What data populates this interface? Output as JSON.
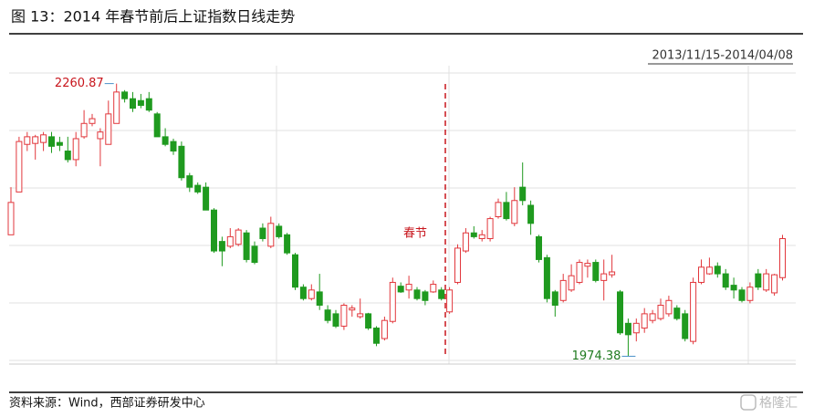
{
  "chart_data": {
    "type": "candlestick",
    "title": "图 13：2014 年春节前后上证指数日线走势",
    "date_range": "2013/11/15-2014/04/08",
    "source": "资料来源：Wind，西部证券研发中心",
    "watermark": "格隆汇",
    "holiday_label": "春节",
    "peak_label": 2260.87,
    "trough_label": 1974.38,
    "up_color": "#e2373c",
    "down_color": "#1f9a1f",
    "ylim": [
      1970,
      2272
    ],
    "open": [
      2102,
      2147,
      2197,
      2198,
      2199,
      2205,
      2199,
      2190,
      2181,
      2205,
      2219,
      2203,
      2197,
      2219,
      2252,
      2245,
      2243,
      2245,
      2229,
      2205,
      2200,
      2195,
      2164,
      2154,
      2152,
      2128,
      2095,
      2090,
      2092,
      2104,
      2090,
      2109,
      2090,
      2111,
      2102,
      2081,
      2047,
      2035,
      2042,
      2023,
      2019,
      2006,
      2023,
      2016,
      2019,
      2004,
      1993,
      2011,
      2048,
      2044,
      2044,
      2042,
      2042,
      2044,
      2021,
      2052,
      2085,
      2104,
      2098,
      2098,
      2121,
      2136,
      2114,
      2152,
      2133,
      2100,
      2078,
      2042,
      2033,
      2044,
      2052,
      2069,
      2073,
      2054,
      2060,
      2042,
      2009,
      1999,
      2004,
      2012,
      2014,
      2019,
      2025,
      2019,
      1990,
      2052,
      2061,
      2069,
      2061,
      2049,
      2044,
      2033,
      2061,
      2044,
      2041,
      2057
    ],
    "high": [
      2152,
      2205,
      2210,
      2207,
      2210,
      2210,
      2205,
      2205,
      2210,
      2233,
      2229,
      2214,
      2243,
      2260.87,
      2254,
      2252,
      2250,
      2252,
      2231,
      2214,
      2203,
      2200,
      2167,
      2157,
      2157,
      2130,
      2100,
      2109,
      2109,
      2107,
      2095,
      2114,
      2121,
      2114,
      2104,
      2083,
      2050,
      2050,
      2061,
      2028,
      2023,
      2030,
      2028,
      2035,
      2020,
      2006,
      2016,
      2057,
      2052,
      2059,
      2047,
      2044,
      2054,
      2047,
      2047,
      2092,
      2109,
      2111,
      2107,
      2121,
      2140,
      2147,
      2152,
      2178,
      2138,
      2102,
      2081,
      2044,
      2061,
      2071,
      2076,
      2076,
      2076,
      2076,
      2081,
      2044,
      2014,
      2014,
      2025,
      2023,
      2035,
      2038,
      2028,
      2023,
      2057,
      2076,
      2078,
      2073,
      2066,
      2057,
      2047,
      2052,
      2066,
      2066,
      2061,
      2102
    ],
    "low": [
      2102,
      2147,
      2190,
      2181,
      2190,
      2188,
      2190,
      2178,
      2174,
      2203,
      2216,
      2174,
      2197,
      2219,
      2241,
      2231,
      2235,
      2231,
      2205,
      2195,
      2186,
      2159,
      2147,
      2145,
      2128,
      2083,
      2069,
      2088,
      2090,
      2073,
      2071,
      2095,
      2088,
      2098,
      2081,
      2044,
      2033,
      2033,
      2023,
      2009,
      2004,
      2002,
      2016,
      2014,
      2002,
      1985,
      1991,
      2009,
      2041,
      2035,
      2033,
      2028,
      2041,
      2033,
      2019,
      2050,
      2083,
      2098,
      2095,
      2095,
      2119,
      2117,
      2111,
      2133,
      2102,
      2073,
      2031,
      2016,
      2031,
      2042,
      2050,
      2057,
      2052,
      2033,
      2057,
      1997,
      1974.38,
      1990,
      1999,
      2009,
      2012,
      2016,
      2012,
      1990,
      1987,
      2050,
      2060,
      2057,
      2044,
      2035,
      2031,
      2030,
      2044,
      2042,
      2038,
      2054
    ],
    "close": [
      2136,
      2200,
      2205,
      2205,
      2207,
      2195,
      2196,
      2181,
      2203,
      2219,
      2224,
      2210,
      2229,
      2252,
      2245,
      2235,
      2238,
      2233,
      2205,
      2197,
      2190,
      2162,
      2152,
      2147,
      2128,
      2085,
      2085,
      2100,
      2107,
      2076,
      2073,
      2098,
      2114,
      2100,
      2083,
      2047,
      2035,
      2044,
      2028,
      2012,
      2006,
      2028,
      2025,
      2019,
      2004,
      1988,
      2012,
      2052,
      2042,
      2050,
      2035,
      2033,
      2050,
      2035,
      2044,
      2088,
      2104,
      2100,
      2102,
      2119,
      2136,
      2119,
      2138,
      2138,
      2114,
      2076,
      2035,
      2028,
      2054,
      2059,
      2073,
      2072,
      2054,
      2061,
      2063,
      1999,
      1997,
      2009,
      2019,
      2019,
      2028,
      2033,
      2014,
      1993,
      2052,
      2068,
      2068,
      2061,
      2047,
      2044,
      2033,
      2047,
      2047,
      2061,
      2060,
      2098
    ]
  }
}
